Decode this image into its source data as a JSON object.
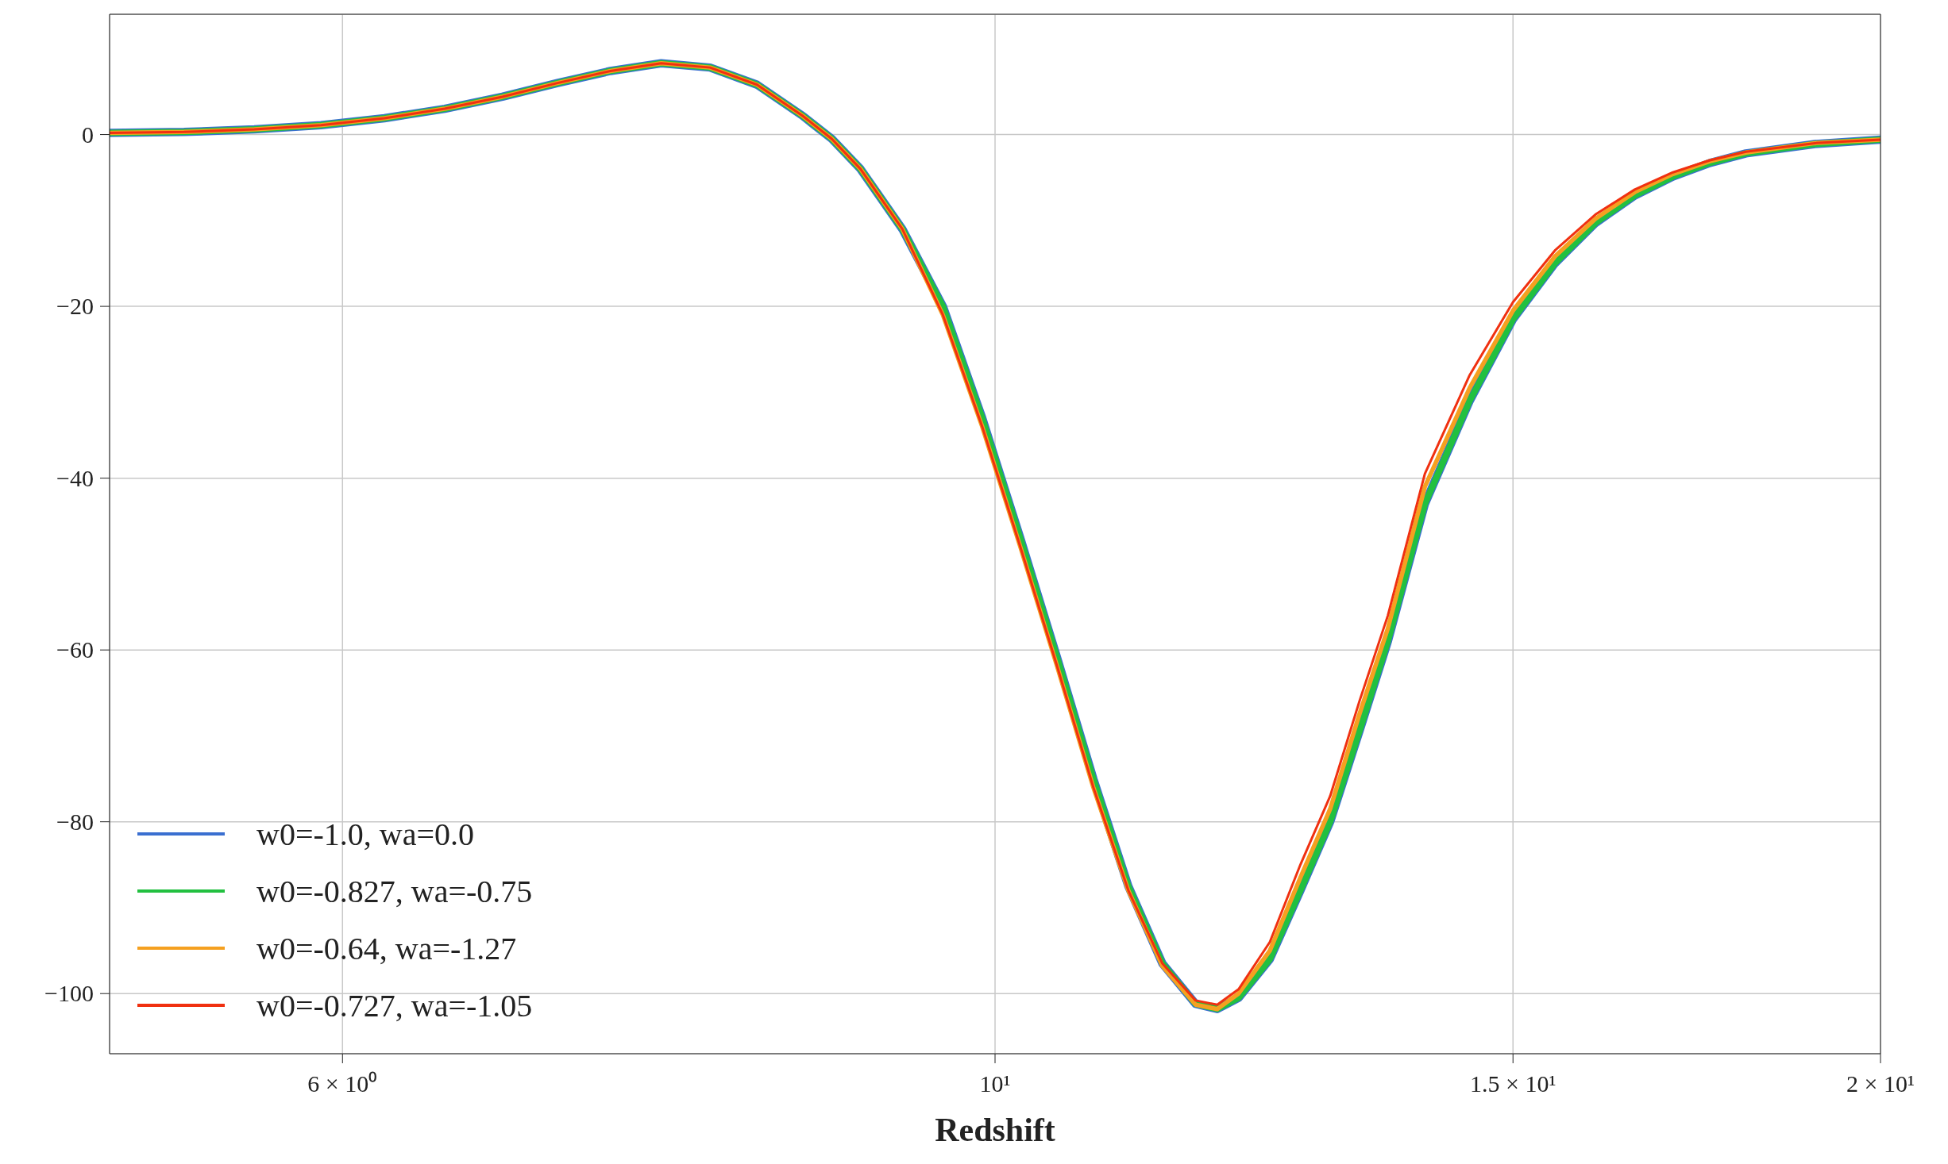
{
  "chart_data": {
    "type": "line",
    "xlabel": "Redshift",
    "log": "x",
    "xlim": [
      5,
      20
    ],
    "xticks": [
      {
        "value": 6,
        "label": "6 × 10⁰"
      },
      {
        "value": 10,
        "label": "10¹"
      },
      {
        "value": 15,
        "label": "1.5 × 10¹"
      },
      {
        "value": 20,
        "label": "2 × 10¹"
      }
    ],
    "ylim": [
      -107,
      14
    ],
    "yticks": [
      0,
      -20,
      -40,
      -60,
      -80,
      -100
    ],
    "grid": true,
    "legend": "bottom left",
    "x": [
      5.0,
      5.3,
      5.6,
      5.9,
      6.2,
      6.5,
      6.8,
      7.1,
      7.4,
      7.7,
      8.0,
      8.3,
      8.6,
      8.8,
      9.0,
      9.3,
      9.6,
      9.9,
      10.2,
      10.5,
      10.8,
      11.1,
      11.4,
      11.7,
      11.9,
      12.1,
      12.4,
      12.7,
      13.0,
      13.3,
      13.6,
      14.0,
      14.5,
      15.0,
      15.5,
      16.0,
      16.5,
      17.0,
      17.5,
      18.0,
      19.0,
      20.0
    ],
    "series": [
      {
        "name": "w0=-1.0, wa=0.0",
        "color": "#3a6fd0",
        "values": [
          0.2,
          0.3,
          0.6,
          1.1,
          1.9,
          3.0,
          4.4,
          6.0,
          7.4,
          8.3,
          7.8,
          5.8,
          2.2,
          -0.5,
          -4,
          -11,
          -20,
          -33,
          -47,
          -61,
          -75,
          -87.5,
          -96.5,
          -101.2,
          -101.8,
          -100.5,
          -96,
          -88,
          -80,
          -69.5,
          -59,
          -43,
          -31,
          -21.5,
          -15,
          -10.3,
          -7.1,
          -4.9,
          -3.3,
          -2.2,
          -1.1,
          -0.6
        ]
      },
      {
        "name": "w0=-0.827, wa=-0.75",
        "color": "#22c040",
        "values": [
          0.2,
          0.3,
          0.6,
          1.1,
          1.9,
          3.0,
          4.4,
          6.0,
          7.4,
          8.3,
          7.8,
          5.8,
          2.2,
          -0.5,
          -4,
          -11,
          -20,
          -33,
          -47,
          -61,
          -75,
          -87.5,
          -96.5,
          -101.2,
          -101.8,
          -100.5,
          -96,
          -88,
          -80,
          -69.5,
          -59,
          -43,
          -31,
          -21.5,
          -15,
          -10.3,
          -7.1,
          -4.9,
          -3.3,
          -2.2,
          -1.1,
          -0.6
        ]
      },
      {
        "name": "w0=-0.64, wa=-1.27",
        "color": "#f5a020",
        "values": [
          0.2,
          0.3,
          0.6,
          1.1,
          1.9,
          3.0,
          4.4,
          6.0,
          7.4,
          8.3,
          7.8,
          5.8,
          2.2,
          -0.5,
          -4,
          -11,
          -21,
          -34,
          -48,
          -62,
          -76,
          -88,
          -96.8,
          -101.3,
          -101.8,
          -100,
          -95,
          -86.5,
          -78.5,
          -67.5,
          -57.5,
          -41,
          -29.5,
          -20.5,
          -14.2,
          -9.8,
          -6.7,
          -4.6,
          -3.1,
          -2.1,
          -1.0,
          -0.6
        ]
      },
      {
        "name": "w0=-0.727, wa=-1.05",
        "color": "#f03010",
        "values": [
          0.2,
          0.3,
          0.6,
          1.1,
          1.9,
          3.0,
          4.4,
          6.0,
          7.4,
          8.3,
          7.8,
          5.8,
          2.2,
          -0.5,
          -4,
          -11,
          -21,
          -34,
          -48,
          -62,
          -76,
          -88,
          -96.5,
          -100.8,
          -101.3,
          -99.5,
          -94,
          -85,
          -77,
          -66,
          -56,
          -39.5,
          -28,
          -19.5,
          -13.5,
          -9.3,
          -6.4,
          -4.4,
          -3.0,
          -2.0,
          -1.0,
          -0.6
        ]
      }
    ]
  }
}
